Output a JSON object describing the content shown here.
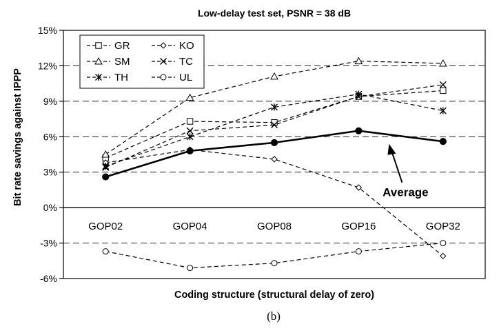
{
  "chart_data": {
    "type": "line",
    "title": "Low-delay test set, PSNR = 38 dB",
    "xlabel": "Coding structure (structural delay of zero)",
    "ylabel": "Bit rate savings against IPPP",
    "caption": "(b)",
    "categories": [
      "GOP02",
      "GOP04",
      "GOP08",
      "GOP16",
      "GOP32"
    ],
    "ylim": [
      -6,
      15
    ],
    "yticks": [
      -6,
      -3,
      0,
      3,
      6,
      9,
      12,
      15
    ],
    "ytick_labels": [
      "-6%",
      "-3%",
      "0%",
      "3%",
      "6%",
      "9%",
      "12%",
      "15%"
    ],
    "grid": "horizontal dashed",
    "legend_position": "top-left",
    "series": [
      {
        "name": "GR",
        "marker": "square",
        "values": [
          4.2,
          7.3,
          7.2,
          9.4,
          9.9
        ]
      },
      {
        "name": "KO",
        "marker": "diamond",
        "values": [
          3.8,
          4.9,
          4.1,
          1.7,
          -4.1
        ]
      },
      {
        "name": "SM",
        "marker": "triangle",
        "values": [
          4.5,
          9.3,
          11.1,
          12.4,
          12.2
        ]
      },
      {
        "name": "TC",
        "marker": "x",
        "values": [
          3.4,
          6.5,
          7.0,
          9.4,
          10.4
        ]
      },
      {
        "name": "TH",
        "marker": "star",
        "values": [
          3.5,
          6.0,
          8.5,
          9.6,
          8.2
        ]
      },
      {
        "name": "UL",
        "marker": "circle",
        "values": [
          -3.7,
          -5.1,
          -4.7,
          -3.7,
          -3.0
        ]
      },
      {
        "name": "Average",
        "marker": "filled-circle",
        "solid": true,
        "values": [
          2.6,
          4.8,
          5.5,
          6.5,
          5.6
        ]
      }
    ],
    "annotations": [
      {
        "text": "Average",
        "points_to": {
          "category": "GOP16",
          "y": 6.5
        }
      }
    ]
  }
}
